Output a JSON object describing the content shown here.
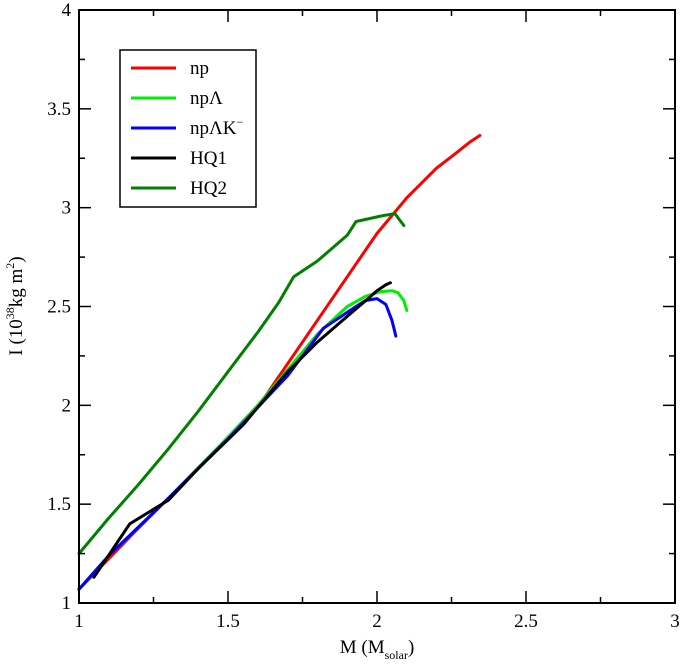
{
  "chart_data": {
    "type": "line",
    "title": "",
    "xlabel": {
      "main": "M (M",
      "sub": "solar",
      "end": ")"
    },
    "ylabel": {
      "main": "I (10",
      "sup1": "38",
      "mid": "kg m",
      "sup2": "2",
      "end": ")"
    },
    "xlim": [
      1,
      3
    ],
    "ylim": [
      1,
      4
    ],
    "xticks": [
      1,
      1.5,
      2,
      2.5,
      3
    ],
    "xtick_labels": [
      "1",
      "1.5",
      "2",
      "2.5",
      "3"
    ],
    "yticks": [
      1,
      1.5,
      2,
      2.5,
      3,
      3.5,
      4
    ],
    "ytick_labels": [
      "1",
      "1.5",
      "2",
      "2.5",
      "3",
      "3.5",
      "4"
    ],
    "grid": false,
    "legend_position": "top-left",
    "series": [
      {
        "name": "np",
        "label_main": "np",
        "label_sup": "",
        "color": "#ff0000",
        "x": [
          1.0,
          1.2,
          1.4,
          1.6,
          1.8,
          2.0,
          2.1,
          2.2,
          2.26,
          2.31,
          2.345
        ],
        "y": [
          1.07,
          1.38,
          1.68,
          1.99,
          2.43,
          2.87,
          3.05,
          3.2,
          3.27,
          3.33,
          3.365
        ]
      },
      {
        "name": "npΛ",
        "label_main": "npΛ",
        "label_sup": "",
        "color": "#00ee00",
        "x": [
          1.0,
          1.1,
          1.3,
          1.5,
          1.6,
          1.8,
          1.9,
          1.96,
          2.01,
          2.05,
          2.07,
          2.09,
          2.1
        ],
        "y": [
          1.07,
          1.24,
          1.53,
          1.84,
          2.0,
          2.36,
          2.5,
          2.55,
          2.575,
          2.58,
          2.57,
          2.53,
          2.48
        ]
      },
      {
        "name": "npΛK−",
        "label_main": "npΛK",
        "label_sup": "−",
        "color": "#0000ff",
        "x": [
          1.0,
          1.1,
          1.3,
          1.5,
          1.6,
          1.7,
          1.82,
          1.9,
          1.96,
          2.0,
          2.03,
          2.05,
          2.06,
          2.063
        ],
        "y": [
          1.07,
          1.24,
          1.53,
          1.83,
          1.99,
          2.15,
          2.39,
          2.47,
          2.53,
          2.54,
          2.51,
          2.43,
          2.37,
          2.35
        ]
      },
      {
        "name": "HQ1",
        "label_main": "HQ1",
        "label_sup": "",
        "color": "#000000",
        "x": [
          1.05,
          1.17,
          1.3,
          1.4,
          1.55,
          1.7,
          1.8,
          1.9,
          1.97,
          2.0,
          2.03,
          2.045
        ],
        "y": [
          1.13,
          1.4,
          1.52,
          1.68,
          1.9,
          2.17,
          2.32,
          2.45,
          2.54,
          2.58,
          2.61,
          2.62
        ]
      },
      {
        "name": "HQ2",
        "label_main": "HQ2",
        "label_sup": "",
        "color": "#008000",
        "x": [
          1.0,
          1.1,
          1.2,
          1.3,
          1.4,
          1.5,
          1.6,
          1.67,
          1.72,
          1.8,
          1.9,
          1.93,
          2.02,
          2.06,
          2.09
        ],
        "y": [
          1.25,
          1.43,
          1.6,
          1.78,
          1.97,
          2.17,
          2.37,
          2.52,
          2.65,
          2.73,
          2.86,
          2.93,
          2.96,
          2.97,
          2.91
        ]
      }
    ]
  }
}
